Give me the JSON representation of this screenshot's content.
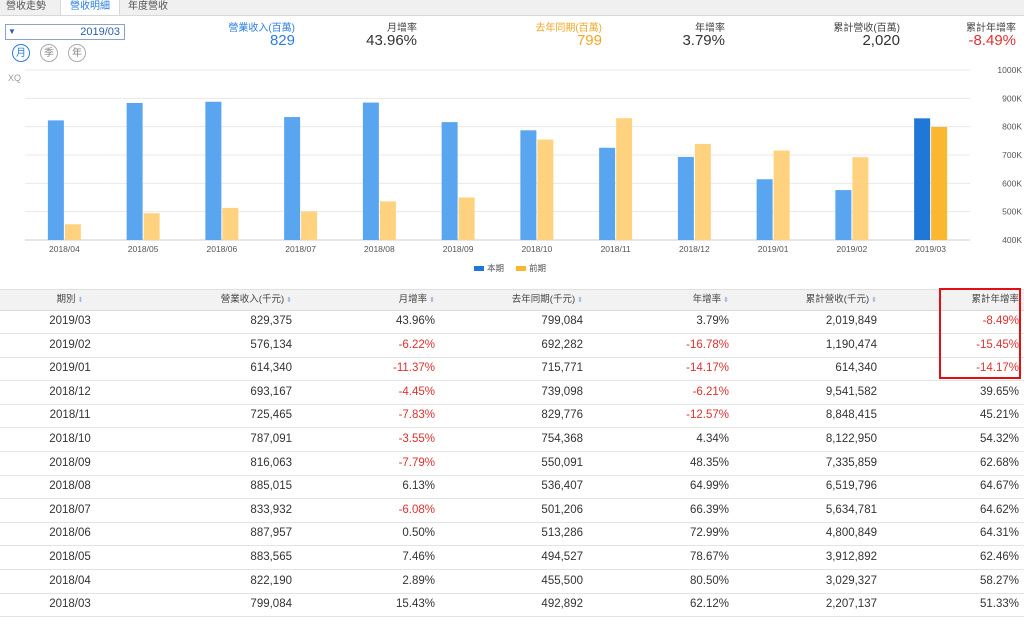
{
  "tabs": [
    {
      "label": "營收走勢",
      "active": false
    },
    {
      "label": "營收明細",
      "active": true
    },
    {
      "label": "年度營收",
      "active": false
    }
  ],
  "period": {
    "value": "2019/03",
    "arrow": "▼"
  },
  "frequency": [
    {
      "label": "月",
      "active": true
    },
    {
      "label": "季",
      "active": false
    },
    {
      "label": "年",
      "active": false
    }
  ],
  "summary": [
    {
      "label": "營業收入(百萬)",
      "value": "829",
      "color": "#2a7de1"
    },
    {
      "label": "月增率",
      "value": "43.96%",
      "color": "#333333"
    },
    {
      "label": "去年同期(百萬)",
      "value": "799",
      "color": "#f5a623"
    },
    {
      "label": "年增率",
      "value": "3.79%",
      "color": "#333333"
    },
    {
      "label": "累計營收(百萬)",
      "value": "2,020",
      "color": "#333333"
    },
    {
      "label": "累計年增率",
      "value": "-8.49%",
      "color": "#e03030"
    }
  ],
  "chart_data": {
    "type": "bar",
    "watermark": "XQ",
    "categories": [
      "2018/04",
      "2018/05",
      "2018/06",
      "2018/07",
      "2018/08",
      "2018/09",
      "2018/10",
      "2018/11",
      "2018/12",
      "2019/01",
      "2019/02",
      "2019/03"
    ],
    "series": [
      {
        "name": "本期",
        "values": [
          822190,
          883565,
          887957,
          833932,
          885015,
          816063,
          787091,
          725465,
          693167,
          614340,
          576134,
          829375
        ]
      },
      {
        "name": "前期",
        "values": [
          455500,
          494527,
          513286,
          501206,
          536407,
          550091,
          754368,
          829776,
          739098,
          715771,
          692282,
          799084
        ]
      }
    ],
    "y_ticks": [
      "400K",
      "500K",
      "600K",
      "700K",
      "800K",
      "900K",
      "1000K"
    ],
    "ylim": [
      400000,
      1000000
    ],
    "colors": {
      "current": "#5aa5ef",
      "previous": "#ffd280",
      "current_selected": "#1f78d8",
      "previous_selected": "#fbb730"
    },
    "legend_position": "bottom-center"
  },
  "table": {
    "headers": [
      "期別",
      "營業收入(千元)",
      "月增率",
      "去年同期(千元)",
      "年增率",
      "累計營收(千元)",
      "累計年增率"
    ],
    "sort_marks": [
      "⬇",
      "⬍",
      "⬍",
      "⬍",
      "⬍",
      "⬍",
      ""
    ],
    "rows": [
      [
        "2019/03",
        "829,375",
        "43.96%",
        "799,084",
        "3.79%",
        "2,019,849",
        "-8.49%"
      ],
      [
        "2019/02",
        "576,134",
        "-6.22%",
        "692,282",
        "-16.78%",
        "1,190,474",
        "-15.45%"
      ],
      [
        "2019/01",
        "614,340",
        "-11.37%",
        "715,771",
        "-14.17%",
        "614,340",
        "-14.17%"
      ],
      [
        "2018/12",
        "693,167",
        "-4.45%",
        "739,098",
        "-6.21%",
        "9,541,582",
        "39.65%"
      ],
      [
        "2018/11",
        "725,465",
        "-7.83%",
        "829,776",
        "-12.57%",
        "8,848,415",
        "45.21%"
      ],
      [
        "2018/10",
        "787,091",
        "-3.55%",
        "754,368",
        "4.34%",
        "8,122,950",
        "54.32%"
      ],
      [
        "2018/09",
        "816,063",
        "-7.79%",
        "550,091",
        "48.35%",
        "7,335,859",
        "62.68%"
      ],
      [
        "2018/08",
        "885,015",
        "6.13%",
        "536,407",
        "64.99%",
        "6,519,796",
        "64.67%"
      ],
      [
        "2018/07",
        "833,932",
        "-6.08%",
        "501,206",
        "66.39%",
        "5,634,781",
        "64.62%"
      ],
      [
        "2018/06",
        "887,957",
        "0.50%",
        "513,286",
        "72.99%",
        "4,800,849",
        "64.31%"
      ],
      [
        "2018/05",
        "883,565",
        "7.46%",
        "494,527",
        "78.67%",
        "3,912,892",
        "62.46%"
      ],
      [
        "2018/04",
        "822,190",
        "2.89%",
        "455,500",
        "80.50%",
        "3,029,327",
        "58.27%"
      ],
      [
        "2018/03",
        "799,084",
        "15.43%",
        "492,892",
        "62.12%",
        "2,207,137",
        "51.33%"
      ]
    ]
  }
}
